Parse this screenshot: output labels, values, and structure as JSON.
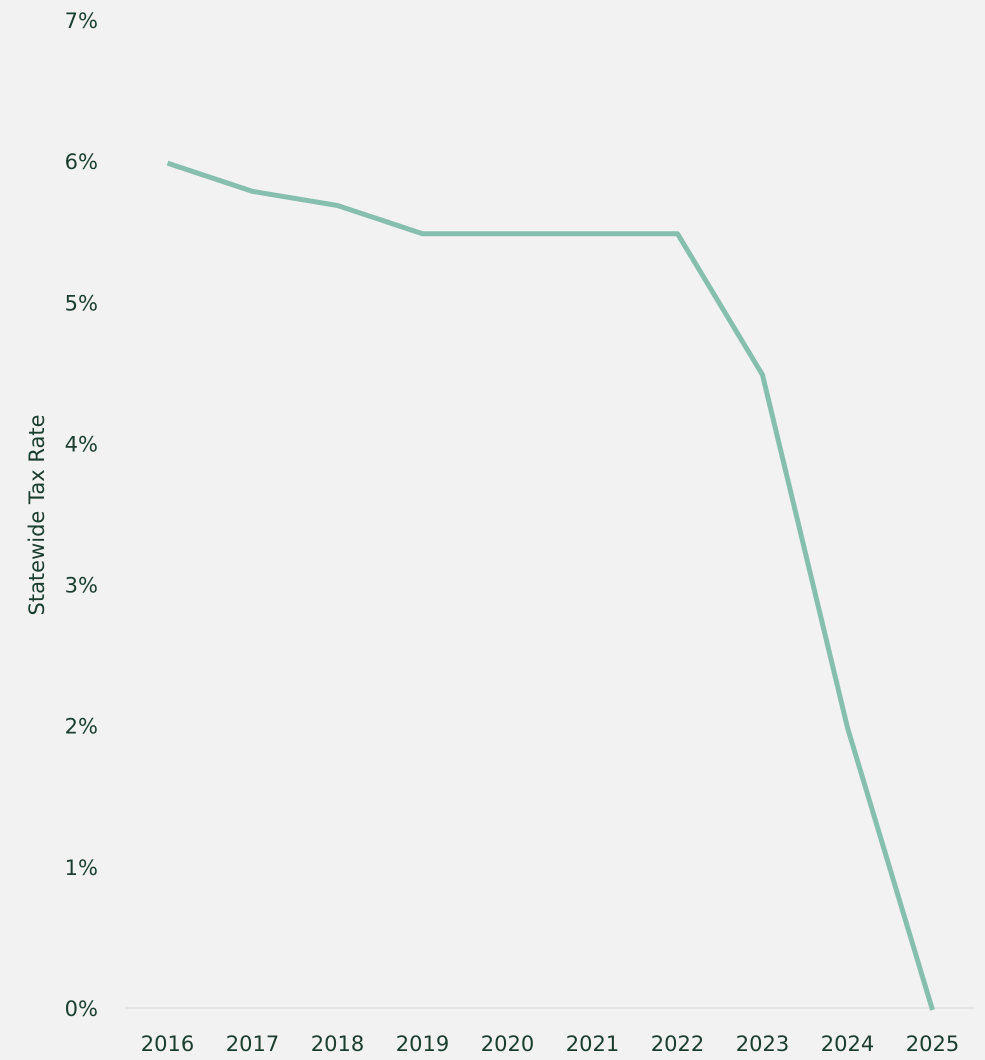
{
  "chart_data": {
    "type": "line",
    "y_label": "Statewide Tax Rate",
    "categories": [
      "2016",
      "2017",
      "2018",
      "2019",
      "2020",
      "2021",
      "2022",
      "2023",
      "2024",
      "2025"
    ],
    "series": [
      {
        "name": "Statewide Tax Rate",
        "color": "#86bfae",
        "values": [
          6.0,
          5.8,
          5.7,
          5.5,
          5.5,
          5.5,
          5.5,
          4.5,
          2.0,
          0
        ]
      }
    ],
    "ylim": [
      0,
      7
    ],
    "yticks": [
      {
        "value": 0,
        "label": "0%"
      },
      {
        "value": 1,
        "label": "1%"
      },
      {
        "value": 2,
        "label": "2%"
      },
      {
        "value": 3,
        "label": "3%"
      },
      {
        "value": 4,
        "label": "4%"
      },
      {
        "value": 5,
        "label": "5%"
      },
      {
        "value": 6,
        "label": "6%"
      },
      {
        "value": 7,
        "label": "7%"
      }
    ],
    "grid": false
  }
}
